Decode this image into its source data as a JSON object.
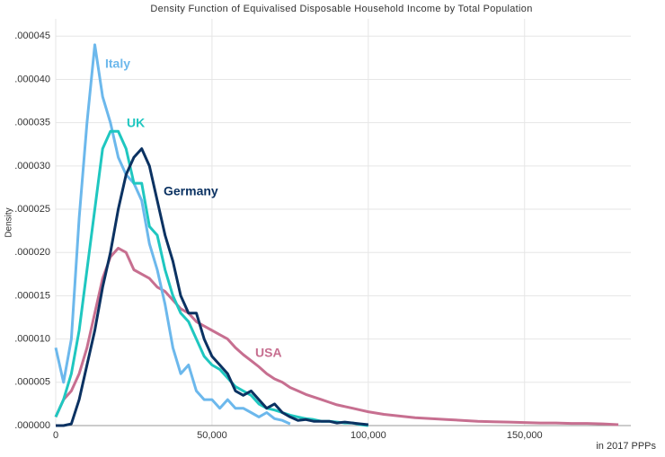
{
  "chart_data": {
    "type": "line",
    "title": "Density Function of Equivalised Disposable Household Income by Total Population",
    "y_label": "Density",
    "x_label": "in 2017 PPPs",
    "x": [
      0,
      2500,
      5000,
      7500,
      10000,
      12500,
      15000,
      17500,
      20000,
      22500,
      25000,
      27500,
      30000,
      32500,
      35000,
      37500,
      40000,
      42500,
      45000,
      47500,
      50000,
      52500,
      55000,
      57500,
      60000,
      62500,
      65000,
      67500,
      70000,
      72500,
      75000,
      77500,
      80000,
      82500,
      85000,
      87500,
      90000,
      92500,
      95000,
      97500,
      100000,
      105000,
      110000,
      115000,
      120000,
      125000,
      130000,
      135000,
      140000,
      145000,
      150000,
      155000,
      160000,
      165000,
      170000,
      175000,
      180000
    ],
    "series": [
      {
        "name": "Italy",
        "color": "#6cb8ec",
        "values": [
          9e-06,
          5e-06,
          1e-05,
          2.4e-05,
          3.5e-05,
          4.4e-05,
          3.8e-05,
          3.5e-05,
          3.1e-05,
          2.9e-05,
          2.8e-05,
          2.6e-05,
          2.1e-05,
          1.8e-05,
          1.4e-05,
          9e-06,
          6e-06,
          7e-06,
          4e-06,
          3e-06,
          3e-06,
          2e-06,
          3e-06,
          2e-06,
          2e-06,
          1.5e-06,
          1e-06,
          1.5e-06,
          8e-07,
          6e-07,
          2e-07,
          null,
          null,
          null,
          null,
          null,
          null,
          null,
          null,
          null,
          null,
          null,
          null,
          null,
          null,
          null,
          null,
          null,
          null,
          null,
          null,
          null,
          null,
          null,
          null,
          null,
          null
        ]
      },
      {
        "name": "UK",
        "color": "#1fc7c0",
        "values": [
          1e-06,
          3e-06,
          6e-06,
          1.1e-05,
          1.8e-05,
          2.5e-05,
          3.2e-05,
          3.4e-05,
          3.4e-05,
          3.2e-05,
          2.8e-05,
          2.8e-05,
          2.3e-05,
          2.2e-05,
          1.8e-05,
          1.5e-05,
          1.3e-05,
          1.2e-05,
          1e-05,
          8e-06,
          7e-06,
          6.5e-06,
          5.5e-06,
          4.5e-06,
          4e-06,
          3.5e-06,
          2.5e-06,
          2e-06,
          1.8e-06,
          1.5e-06,
          1.2e-06,
          1e-06,
          8e-07,
          7e-07,
          5e-07,
          5e-07,
          4e-07,
          3e-07,
          3e-07,
          1e-07,
          0,
          null,
          null,
          null,
          null,
          null,
          null,
          null,
          null,
          null,
          null,
          null,
          null,
          null,
          null,
          null,
          null
        ]
      },
      {
        "name": "Germany",
        "color": "#0b3262",
        "values": [
          0,
          0,
          2e-07,
          3e-06,
          7e-06,
          1.1e-05,
          1.6e-05,
          2e-05,
          2.5e-05,
          2.9e-05,
          3.1e-05,
          3.2e-05,
          3e-05,
          2.6e-05,
          2.2e-05,
          1.9e-05,
          1.5e-05,
          1.3e-05,
          1.3e-05,
          1e-05,
          8e-06,
          7e-06,
          6e-06,
          4e-06,
          3.5e-06,
          4e-06,
          3e-06,
          2e-06,
          2.5e-06,
          1.5e-06,
          1e-06,
          6e-07,
          7e-07,
          5e-07,
          5e-07,
          5e-07,
          3e-07,
          4e-07,
          3e-07,
          2e-07,
          1e-07,
          null,
          null,
          null,
          null,
          null,
          null,
          null,
          null,
          null,
          null,
          null,
          null,
          null,
          null,
          null,
          null
        ]
      },
      {
        "name": "USA",
        "color": "#c76f90",
        "values": [
          1e-06,
          3e-06,
          4e-06,
          6e-06,
          9e-06,
          1.3e-05,
          1.7e-05,
          1.95e-05,
          2.05e-05,
          2e-05,
          1.8e-05,
          1.75e-05,
          1.7e-05,
          1.6e-05,
          1.55e-05,
          1.45e-05,
          1.35e-05,
          1.3e-05,
          1.2e-05,
          1.15e-05,
          1.1e-05,
          1.05e-05,
          1e-05,
          9e-06,
          8.2e-06,
          7.5e-06,
          6.8e-06,
          6e-06,
          5.4e-06,
          5e-06,
          4.4e-06,
          4e-06,
          3.6e-06,
          3.3e-06,
          3e-06,
          2.7e-06,
          2.4e-06,
          2.2e-06,
          2e-06,
          1.8e-06,
          1.6e-06,
          1.3e-06,
          1.1e-06,
          9e-07,
          8e-07,
          7e-07,
          6e-07,
          5e-07,
          4.5e-07,
          4e-07,
          3.5e-07,
          3e-07,
          3e-07,
          2.5e-07,
          2.5e-07,
          2e-07,
          1e-07
        ]
      }
    ],
    "xlim": [
      0,
      184000
    ],
    "ylim": [
      0,
      4.7e-05
    ],
    "xticks": [
      0,
      {
        "value": 50000,
        "label": "50,000"
      },
      {
        "value": 100000,
        "label": "100,000"
      },
      {
        "value": 150000,
        "label": "150,000"
      }
    ],
    "yticks": [
      {
        "value": 0,
        "label": ".000000"
      },
      {
        "value": 5e-06,
        "label": ".000005"
      },
      {
        "value": 1e-05,
        "label": ".000010"
      },
      {
        "value": 1.5e-05,
        "label": ".000015"
      },
      {
        "value": 2e-05,
        "label": ".000020"
      },
      {
        "value": 2.5e-05,
        "label": ".000025"
      },
      {
        "value": 3e-05,
        "label": ".000030"
      },
      {
        "value": 3.5e-05,
        "label": ".000035"
      },
      {
        "value": 4e-05,
        "label": ".000040"
      },
      {
        "value": 4.5e-05,
        "label": ".000045"
      }
    ],
    "grid": true
  }
}
